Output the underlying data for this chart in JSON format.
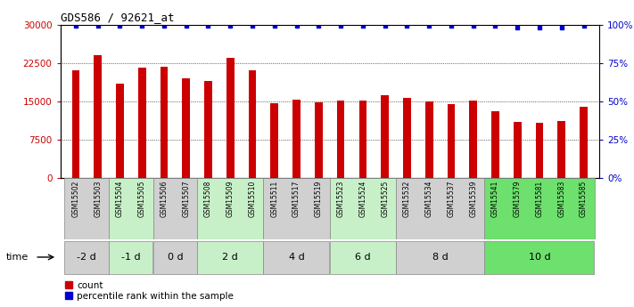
{
  "title": "GDS586 / 92621_at",
  "samples": [
    "GSM15502",
    "GSM15503",
    "GSM15504",
    "GSM15505",
    "GSM15506",
    "GSM15507",
    "GSM15508",
    "GSM15509",
    "GSM15510",
    "GSM15511",
    "GSM15517",
    "GSM15519",
    "GSM15523",
    "GSM15524",
    "GSM15525",
    "GSM15532",
    "GSM15534",
    "GSM15537",
    "GSM15539",
    "GSM15541",
    "GSM15579",
    "GSM15581",
    "GSM15583",
    "GSM15585"
  ],
  "counts": [
    21000,
    24000,
    18500,
    21500,
    21800,
    19500,
    19000,
    23500,
    21000,
    14600,
    15300,
    14800,
    15200,
    15200,
    16200,
    15600,
    15000,
    14500,
    15100,
    13000,
    11000,
    10800,
    11200,
    14000
  ],
  "percentile_ranks": [
    99,
    99,
    99,
    99,
    99,
    99,
    99,
    99,
    99,
    99,
    99,
    99,
    99,
    99,
    99,
    99,
    99,
    99,
    99,
    99,
    98,
    98,
    98,
    99
  ],
  "ylim_left": [
    0,
    30000
  ],
  "ylim_right": [
    0,
    100
  ],
  "yticks_left": [
    0,
    7500,
    15000,
    22500,
    30000
  ],
  "yticks_right": [
    0,
    25,
    50,
    75,
    100
  ],
  "bar_color": "#cc0000",
  "percentile_color": "#0000cc",
  "time_groups": [
    {
      "label": "-2 d",
      "start": 0,
      "end": 2,
      "color": "#d0d0d0"
    },
    {
      "label": "-1 d",
      "start": 2,
      "end": 4,
      "color": "#c8f0c8"
    },
    {
      "label": "0 d",
      "start": 4,
      "end": 6,
      "color": "#d0d0d0"
    },
    {
      "label": "2 d",
      "start": 6,
      "end": 9,
      "color": "#c8f0c8"
    },
    {
      "label": "4 d",
      "start": 9,
      "end": 12,
      "color": "#d0d0d0"
    },
    {
      "label": "6 d",
      "start": 12,
      "end": 15,
      "color": "#c8f0c8"
    },
    {
      "label": "8 d",
      "start": 15,
      "end": 19,
      "color": "#d0d0d0"
    },
    {
      "label": "10 d",
      "start": 19,
      "end": 24,
      "color": "#6de06d"
    }
  ],
  "xlabel_color": "#cc0000",
  "ylabel_left_color": "#cc0000",
  "ylabel_right_color": "#0000cc",
  "background_color": "#ffffff",
  "time_label": "time",
  "legend_count_label": "count",
  "legend_pct_label": "percentile rank within the sample"
}
